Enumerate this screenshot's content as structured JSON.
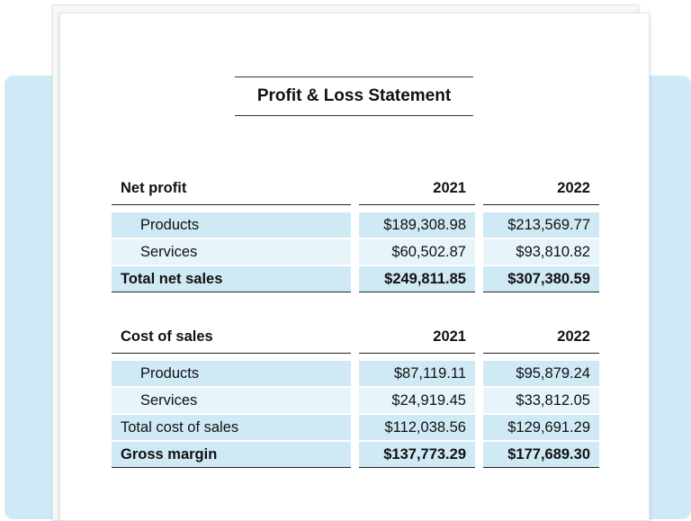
{
  "title": "Profit & Loss Statement",
  "sections": [
    {
      "header": {
        "label": "Net profit",
        "year1": "2021",
        "year2": "2022"
      },
      "rows": [
        {
          "label": "Products",
          "y1": "$189,308.98",
          "y2": "$213,569.77"
        },
        {
          "label": "Services",
          "y1": "$60,502.87",
          "y2": "$93,810.82"
        },
        {
          "label": "Total net sales",
          "y1": "$249,811.85",
          "y2": "$307,380.59"
        }
      ]
    },
    {
      "header": {
        "label": "Cost of sales",
        "year1": "2021",
        "year2": "2022"
      },
      "rows": [
        {
          "label": "Products",
          "y1": "$87,119.11",
          "y2": "$95,879.24"
        },
        {
          "label": "Services",
          "y1": "$24,919.45",
          "y2": "$33,812.05"
        },
        {
          "label": "Total cost of sales",
          "y1": "$112,038.56",
          "y2": "$129,691.29"
        },
        {
          "label": "Gross margin",
          "y1": "$137,773.29",
          "y2": "$177,689.30"
        }
      ]
    }
  ],
  "colors": {
    "backdrop": "#cfeaf6",
    "row_shade": "#cfe9f5",
    "row_shade_light": "#e7f4fa"
  }
}
